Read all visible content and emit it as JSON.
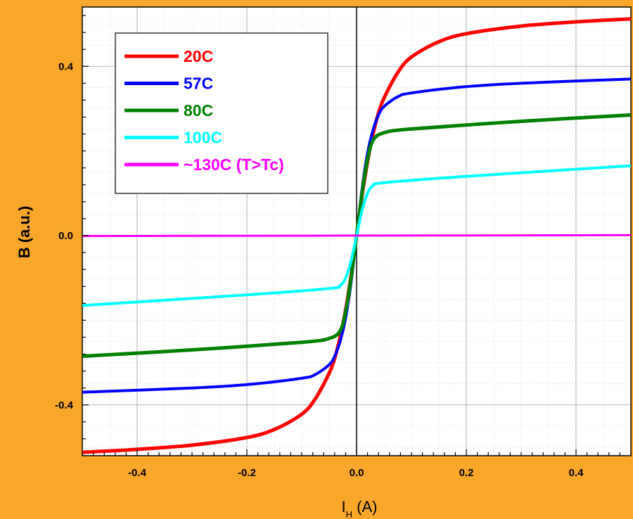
{
  "chart_data": {
    "type": "line",
    "title": "",
    "xlabel_main": "I",
    "xlabel_sub": "H",
    "xlabel_unit": " (A)",
    "ylabel": "B (a.u.)",
    "xlim": [
      -0.5,
      0.5
    ],
    "ylim": [
      -0.52,
      0.54
    ],
    "x_ticks": [
      {
        "value": -0.4,
        "label": "-0.4"
      },
      {
        "value": -0.2,
        "label": "-0.2"
      },
      {
        "value": 0.0,
        "label": "0.0"
      },
      {
        "value": 0.2,
        "label": "0.2"
      },
      {
        "value": 0.4,
        "label": "0.4"
      }
    ],
    "y_ticks": [
      {
        "value": -0.4,
        "label": "-0.4"
      },
      {
        "value": 0.0,
        "label": "0.0"
      },
      {
        "value": 0.4,
        "label": "0.4"
      }
    ],
    "grid": true,
    "legend_position": "top-left",
    "series": [
      {
        "name": "20C",
        "color": "#ff0000",
        "x": [
          -0.5,
          -0.4,
          -0.3,
          -0.2,
          -0.15,
          -0.1,
          -0.075,
          -0.05,
          -0.04,
          -0.03,
          -0.02,
          -0.01,
          0.0,
          0.01,
          0.02,
          0.03,
          0.04,
          0.05,
          0.075,
          0.1,
          0.15,
          0.2,
          0.3,
          0.4,
          0.5
        ],
        "y": [
          -0.512,
          -0.505,
          -0.495,
          -0.477,
          -0.458,
          -0.422,
          -0.385,
          -0.325,
          -0.29,
          -0.24,
          -0.175,
          -0.095,
          0.0,
          0.095,
          0.175,
          0.24,
          0.29,
          0.325,
          0.385,
          0.422,
          0.458,
          0.477,
          0.495,
          0.505,
          0.512
        ]
      },
      {
        "name": "57C",
        "color": "#0000ff",
        "x": [
          -0.5,
          -0.3,
          -0.2,
          -0.1,
          -0.075,
          -0.05,
          -0.04,
          -0.03,
          -0.02,
          -0.01,
          0.0,
          0.01,
          0.02,
          0.03,
          0.04,
          0.05,
          0.075,
          0.1,
          0.2,
          0.3,
          0.5
        ],
        "y": [
          -0.37,
          -0.36,
          -0.352,
          -0.337,
          -0.328,
          -0.305,
          -0.285,
          -0.25,
          -0.195,
          -0.11,
          0.0,
          0.11,
          0.195,
          0.25,
          0.285,
          0.305,
          0.328,
          0.337,
          0.352,
          0.36,
          0.37
        ],
        "stroke_width": 4
      },
      {
        "name": "80C",
        "color": "#008000",
        "x": [
          -0.5,
          -0.3,
          -0.1,
          -0.05,
          -0.03,
          -0.02,
          -0.01,
          0.0,
          0.01,
          0.02,
          0.03,
          0.05,
          0.1,
          0.3,
          0.5
        ],
        "y": [
          -0.285,
          -0.27,
          -0.252,
          -0.243,
          -0.225,
          -0.18,
          -0.1,
          0.0,
          0.1,
          0.18,
          0.225,
          0.243,
          0.252,
          0.27,
          0.285
        ],
        "stroke_width": 5
      },
      {
        "name": "100C",
        "color": "#00ffff",
        "x": [
          -0.5,
          -0.2,
          -0.05,
          -0.03,
          -0.02,
          -0.01,
          0.0,
          0.01,
          0.02,
          0.03,
          0.05,
          0.2,
          0.5
        ],
        "y": [
          -0.165,
          -0.14,
          -0.125,
          -0.118,
          -0.1,
          -0.06,
          0.0,
          0.06,
          0.1,
          0.118,
          0.125,
          0.14,
          0.165
        ],
        "stroke_width": 4
      },
      {
        "name": "~130C (T>Tc)",
        "color": "#ff00ff",
        "x": [
          -0.5,
          0.5
        ],
        "y": [
          -0.001,
          0.001
        ],
        "stroke_width": 3
      }
    ]
  }
}
